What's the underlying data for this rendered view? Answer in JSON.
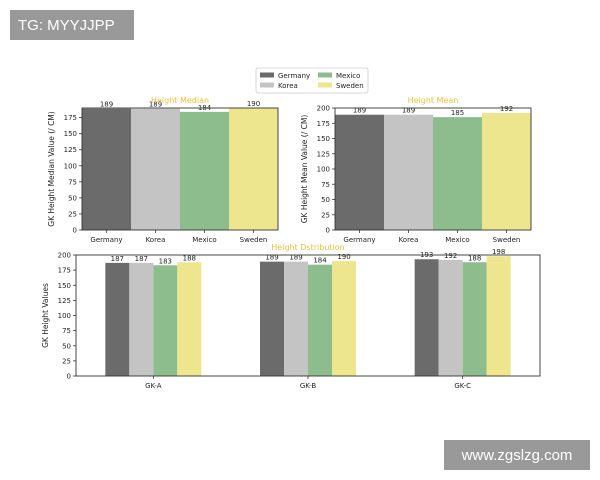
{
  "watermarks": {
    "top_left": "TG: MYYJJPP",
    "bottom_right": "www.zgslzg.com"
  },
  "colors": {
    "Germany": "#6b6b6b",
    "Korea": "#c4c4c4",
    "Mexico": "#8dbd8d",
    "Sweden": "#ede68e",
    "title": "#e8c040"
  },
  "legend": {
    "position": "top-center",
    "entries": [
      "Germany",
      "Korea",
      "Mexico",
      "Sweden"
    ]
  },
  "chart_data": [
    {
      "type": "bar",
      "title": "Height Median",
      "xlabel": "",
      "ylabel": "GK Height Median Value (/ CM)",
      "ylim": [
        0,
        190
      ],
      "yticks": [
        0,
        25,
        50,
        75,
        100,
        125,
        150,
        175
      ],
      "categories": [
        "Germany",
        "Korea",
        "Mexico",
        "Sweden"
      ],
      "values": [
        189,
        189,
        184,
        190
      ]
    },
    {
      "type": "bar",
      "title": "Height Mean",
      "xlabel": "",
      "ylabel": "GK Height Mean Value (/ CM)",
      "ylim": [
        0,
        200
      ],
      "yticks": [
        0,
        25,
        50,
        75,
        100,
        125,
        150,
        175,
        200
      ],
      "categories": [
        "Germany",
        "Korea",
        "Mexico",
        "Sweden"
      ],
      "values": [
        189,
        189,
        185,
        192
      ]
    },
    {
      "type": "bar",
      "title": "Height Dstribution",
      "xlabel": "",
      "ylabel": "GK Height Values",
      "ylim": [
        0,
        200
      ],
      "yticks": [
        0,
        25,
        50,
        75,
        100,
        125,
        150,
        175,
        200
      ],
      "categories": [
        "GK-A",
        "GK-B",
        "GK-C"
      ],
      "series": [
        {
          "name": "Germany",
          "values": [
            187,
            189,
            193
          ]
        },
        {
          "name": "Korea",
          "values": [
            187,
            189,
            192
          ]
        },
        {
          "name": "Mexico",
          "values": [
            183,
            184,
            188
          ]
        },
        {
          "name": "Sweden",
          "values": [
            188,
            190,
            198
          ]
        }
      ]
    }
  ]
}
